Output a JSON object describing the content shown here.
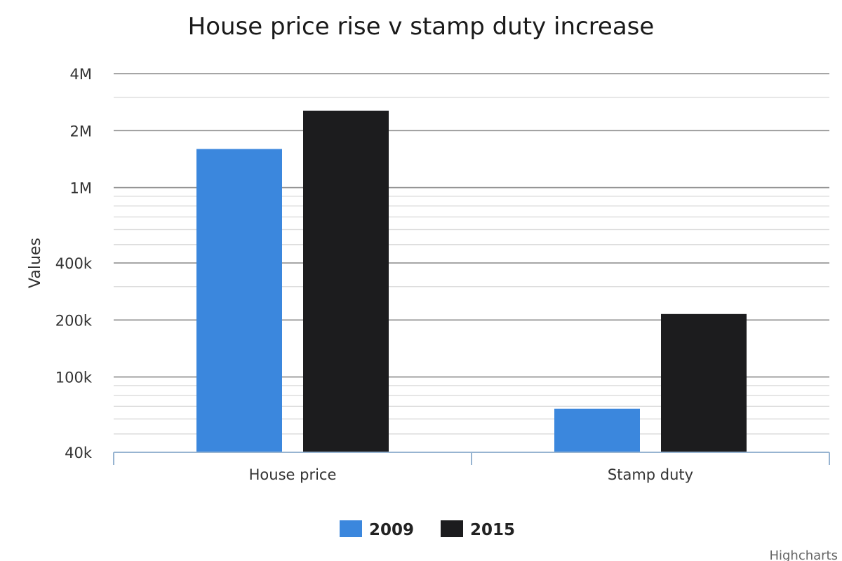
{
  "chart_data": {
    "type": "bar",
    "title": "House price rise v stamp duty increase",
    "xlabel": "",
    "ylabel": "Values",
    "y_scale": "log",
    "ylim": [
      40000,
      4000000
    ],
    "y_ticks": [
      {
        "value": 40000,
        "label": "40k"
      },
      {
        "value": 100000,
        "label": "100k"
      },
      {
        "value": 200000,
        "label": "200k"
      },
      {
        "value": 400000,
        "label": "400k"
      },
      {
        "value": 1000000,
        "label": "1M"
      },
      {
        "value": 2000000,
        "label": "2M"
      },
      {
        "value": 4000000,
        "label": "4M"
      }
    ],
    "categories": [
      "House price",
      "Stamp duty"
    ],
    "series": [
      {
        "name": "2009",
        "color": "#3b87dd",
        "values": [
          1600000,
          68000
        ]
      },
      {
        "name": "2015",
        "color": "#1c1c1e",
        "values": [
          2550000,
          215000
        ]
      }
    ],
    "grid": true,
    "legend_position": "bottom",
    "credits": "Highcharts"
  }
}
